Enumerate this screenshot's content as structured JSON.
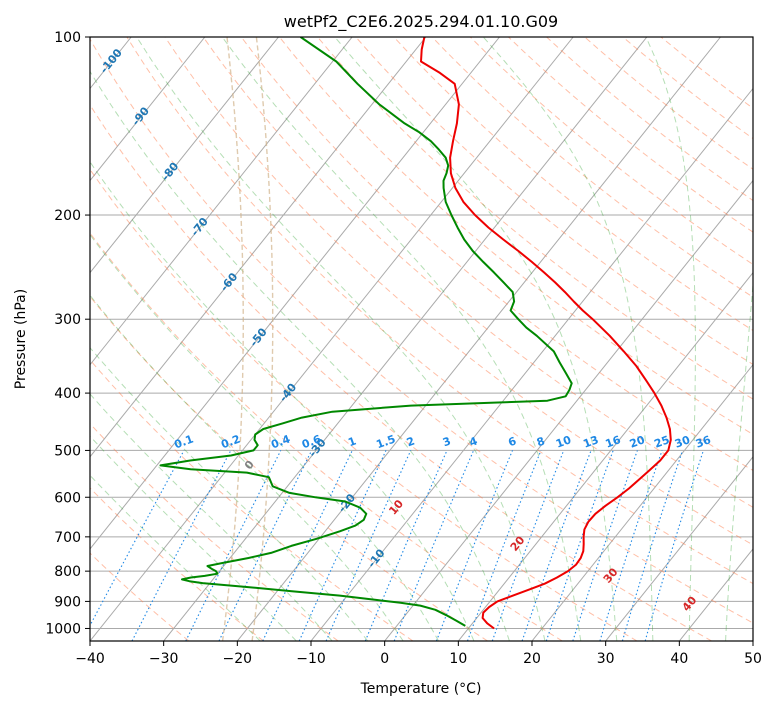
{
  "chart_data": {
    "type": "line",
    "title": "wetPf2_C2E6.2025.294.01.10.G09",
    "xlabel": "Temperature (°C)",
    "ylabel": "Pressure (hPa)",
    "xlim": [
      -40,
      50
    ],
    "ylim": [
      1050,
      100
    ],
    "y_scale": "log",
    "x_ticks": [
      "−40",
      "−30",
      "−20",
      "−10",
      "0",
      "10",
      "20",
      "30",
      "40",
      "50"
    ],
    "x_tick_values": [
      -40,
      -30,
      -20,
      -10,
      0,
      10,
      20,
      30,
      40,
      50
    ],
    "y_ticks": [
      "100",
      "200",
      "300",
      "400",
      "500",
      "600",
      "700",
      "800",
      "900",
      "1000"
    ],
    "y_tick_values": [
      100,
      200,
      300,
      400,
      500,
      600,
      700,
      800,
      900,
      1000
    ],
    "grid": true,
    "series": [
      {
        "kind": "temperature",
        "color": "#ee0000",
        "points": [
          [
            1000,
            13.5
          ],
          [
            980,
            12.0
          ],
          [
            960,
            10.8
          ],
          [
            940,
            10.3
          ],
          [
            920,
            10.5
          ],
          [
            900,
            11.0
          ],
          [
            880,
            12.5
          ],
          [
            860,
            14.0
          ],
          [
            840,
            15.5
          ],
          [
            820,
            16.5
          ],
          [
            800,
            17.3
          ],
          [
            780,
            17.7
          ],
          [
            760,
            17.6
          ],
          [
            740,
            17.2
          ],
          [
            720,
            16.5
          ],
          [
            700,
            15.7
          ],
          [
            680,
            15.0
          ],
          [
            660,
            14.7
          ],
          [
            640,
            14.8
          ],
          [
            620,
            15.3
          ],
          [
            600,
            16.0
          ],
          [
            580,
            16.6
          ],
          [
            560,
            17.0
          ],
          [
            540,
            17.4
          ],
          [
            520,
            17.8
          ],
          [
            500,
            17.8
          ],
          [
            480,
            17.0
          ],
          [
            460,
            15.7
          ],
          [
            440,
            14.0
          ],
          [
            420,
            12.0
          ],
          [
            400,
            9.7
          ],
          [
            380,
            7.1
          ],
          [
            360,
            4.3
          ],
          [
            340,
            1.0
          ],
          [
            320,
            -2.6
          ],
          [
            300,
            -6.7
          ],
          [
            290,
            -9.0
          ],
          [
            280,
            -11.2
          ],
          [
            270,
            -13.4
          ],
          [
            260,
            -15.8
          ],
          [
            250,
            -18.4
          ],
          [
            240,
            -21.2
          ],
          [
            230,
            -24.2
          ],
          [
            220,
            -27.5
          ],
          [
            210,
            -30.8
          ],
          [
            200,
            -34.0
          ],
          [
            190,
            -37.0
          ],
          [
            180,
            -39.6
          ],
          [
            170,
            -41.8
          ],
          [
            160,
            -43.6
          ],
          [
            150,
            -45.0
          ],
          [
            140,
            -46.4
          ],
          [
            130,
            -48.2
          ],
          [
            120,
            -51.0
          ],
          [
            115,
            -54.2
          ],
          [
            110,
            -58.0
          ],
          [
            105,
            -59.2
          ],
          [
            100,
            -60.2
          ]
        ]
      },
      {
        "kind": "dewpoint",
        "color": "#008800",
        "points": [
          [
            990,
            9.3
          ],
          [
            970,
            7.5
          ],
          [
            950,
            5.6
          ],
          [
            930,
            3.5
          ],
          [
            915,
            1.0
          ],
          [
            905,
            -2.0
          ],
          [
            895,
            -5.5
          ],
          [
            880,
            -11.0
          ],
          [
            865,
            -18.0
          ],
          [
            850,
            -25.0
          ],
          [
            838,
            -31.0
          ],
          [
            832,
            -33.0
          ],
          [
            826,
            -34.2
          ],
          [
            820,
            -33.2
          ],
          [
            815,
            -31.5
          ],
          [
            808,
            -30.0
          ],
          [
            800,
            -30.5
          ],
          [
            792,
            -31.4
          ],
          [
            784,
            -32.2
          ],
          [
            775,
            -30.5
          ],
          [
            760,
            -27.5
          ],
          [
            745,
            -25.0
          ],
          [
            725,
            -23.0
          ],
          [
            705,
            -20.3
          ],
          [
            685,
            -18.0
          ],
          [
            670,
            -16.5
          ],
          [
            655,
            -16.0
          ],
          [
            640,
            -16.3
          ],
          [
            625,
            -17.8
          ],
          [
            610,
            -20.5
          ],
          [
            600,
            -25.0
          ],
          [
            590,
            -29.0
          ],
          [
            575,
            -32.0
          ],
          [
            555,
            -33.5
          ],
          [
            545,
            -37.0
          ],
          [
            538,
            -45.0
          ],
          [
            530,
            -49.5
          ],
          [
            520,
            -46.0
          ],
          [
            510,
            -41.0
          ],
          [
            500,
            -38.5
          ],
          [
            490,
            -38.5
          ],
          [
            480,
            -39.5
          ],
          [
            470,
            -40.0
          ],
          [
            460,
            -39.5
          ],
          [
            450,
            -37.5
          ],
          [
            440,
            -35.5
          ],
          [
            430,
            -32.0
          ],
          [
            420,
            -22.0
          ],
          [
            415,
            -11.0
          ],
          [
            412,
            -4.0
          ],
          [
            405,
            -2.0
          ],
          [
            395,
            -2.2
          ],
          [
            385,
            -2.6
          ],
          [
            370,
            -4.5
          ],
          [
            355,
            -6.5
          ],
          [
            340,
            -8.5
          ],
          [
            320,
            -12.5
          ],
          [
            310,
            -14.8
          ],
          [
            300,
            -16.8
          ],
          [
            290,
            -18.8
          ],
          [
            280,
            -19.3
          ],
          [
            270,
            -20.5
          ],
          [
            260,
            -22.8
          ],
          [
            250,
            -25.2
          ],
          [
            240,
            -27.8
          ],
          [
            230,
            -30.4
          ],
          [
            220,
            -32.8
          ],
          [
            210,
            -35.0
          ],
          [
            200,
            -37.2
          ],
          [
            190,
            -39.4
          ],
          [
            180,
            -41.2
          ],
          [
            175,
            -42.0
          ],
          [
            170,
            -42.4
          ],
          [
            165,
            -43.0
          ],
          [
            160,
            -44.2
          ],
          [
            155,
            -46.0
          ],
          [
            150,
            -48.0
          ],
          [
            145,
            -50.5
          ],
          [
            140,
            -53.5
          ],
          [
            130,
            -59.0
          ],
          [
            120,
            -64.2
          ],
          [
            110,
            -69.5
          ],
          [
            100,
            -77.0
          ]
        ]
      }
    ],
    "isotherm_labels": [
      "-100",
      "-90",
      "-80",
      "-70",
      "-60",
      "-50",
      "-40",
      "-30",
      "-20",
      "-10"
    ],
    "isotherm_label_values": [
      -100,
      -90,
      -80,
      -70,
      -60,
      -50,
      -40,
      -30,
      -20,
      -10
    ],
    "mixing_ratio_labels": [
      "0.1",
      "0.2",
      "0.4",
      "0.6",
      "1",
      "1.5",
      "2",
      "3",
      "4",
      "6",
      "8",
      "10",
      "13",
      "16",
      "20",
      "25",
      "30",
      "36"
    ],
    "mixing_ratio_values": [
      0.1,
      0.2,
      0.4,
      0.6,
      1,
      1.5,
      2,
      3,
      4,
      6,
      8,
      10,
      13,
      16,
      20,
      25,
      30,
      36
    ],
    "moist_adiabat_labels": [
      "0",
      "10",
      "20",
      "30",
      "40"
    ],
    "moist_adiabat_values": [
      0,
      10,
      20,
      30,
      40
    ],
    "colors": {
      "isotherm": "#aaaaaa",
      "isotherm_label": "#1f77b4",
      "mixing_ratio": "#1e88e5",
      "dry_adiabat": "#ff7f50",
      "moist_adiabat": "#2ca02c",
      "moist_label_zero": "#808080",
      "moist_label": "#d62728",
      "isobar": "#aaaaaa",
      "curve_lcl": "#d2b48c"
    }
  }
}
